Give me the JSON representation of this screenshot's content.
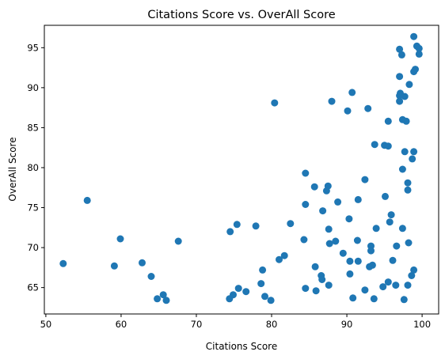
{
  "chart_data": {
    "type": "scatter",
    "title": "Citations Score vs. OverAll Score",
    "xlabel": "Citations Score",
    "ylabel": "OverAll Score",
    "xlim": [
      49.8,
      102.2
    ],
    "ylim": [
      61.7,
      97.8
    ],
    "xticks": [
      50,
      60,
      70,
      80,
      90,
      100
    ],
    "yticks": [
      65,
      70,
      75,
      80,
      85,
      90,
      95
    ],
    "grid": false,
    "legend": "none",
    "color": "#1f77b4",
    "points": [
      [
        52.3,
        68.0
      ],
      [
        55.5,
        75.9
      ],
      [
        59.1,
        67.7
      ],
      [
        59.9,
        71.1
      ],
      [
        62.8,
        68.1
      ],
      [
        64.0,
        66.4
      ],
      [
        64.8,
        63.6
      ],
      [
        65.6,
        64.1
      ],
      [
        66.0,
        63.4
      ],
      [
        67.6,
        70.8
      ],
      [
        74.4,
        63.6
      ],
      [
        74.5,
        72.0
      ],
      [
        74.9,
        64.1
      ],
      [
        75.4,
        72.9
      ],
      [
        75.6,
        64.9
      ],
      [
        76.6,
        64.5
      ],
      [
        77.9,
        72.7
      ],
      [
        78.6,
        65.5
      ],
      [
        78.8,
        67.2
      ],
      [
        79.1,
        63.9
      ],
      [
        79.9,
        63.4
      ],
      [
        80.4,
        88.1
      ],
      [
        81.0,
        68.5
      ],
      [
        81.7,
        69.0
      ],
      [
        82.5,
        73.0
      ],
      [
        84.3,
        71.0
      ],
      [
        84.5,
        75.4
      ],
      [
        84.5,
        79.3
      ],
      [
        84.5,
        64.9
      ],
      [
        85.7,
        77.6
      ],
      [
        85.8,
        67.6
      ],
      [
        85.9,
        64.6
      ],
      [
        86.6,
        66.5
      ],
      [
        86.7,
        66.0
      ],
      [
        86.8,
        74.6
      ],
      [
        87.3,
        77.1
      ],
      [
        87.5,
        77.7
      ],
      [
        87.6,
        65.3
      ],
      [
        87.6,
        72.3
      ],
      [
        87.7,
        70.5
      ],
      [
        88.0,
        88.3
      ],
      [
        88.5,
        70.8
      ],
      [
        88.8,
        75.7
      ],
      [
        89.5,
        69.3
      ],
      [
        90.1,
        87.1
      ],
      [
        90.3,
        73.6
      ],
      [
        90.4,
        68.3
      ],
      [
        90.4,
        66.7
      ],
      [
        90.7,
        89.4
      ],
      [
        90.8,
        63.7
      ],
      [
        91.4,
        70.9
      ],
      [
        91.5,
        68.3
      ],
      [
        91.5,
        76.0
      ],
      [
        92.4,
        78.5
      ],
      [
        92.4,
        64.7
      ],
      [
        92.8,
        87.4
      ],
      [
        93.0,
        67.6
      ],
      [
        93.2,
        70.2
      ],
      [
        93.2,
        69.6
      ],
      [
        93.4,
        67.8
      ],
      [
        93.6,
        63.6
      ],
      [
        93.7,
        82.9
      ],
      [
        93.9,
        72.4
      ],
      [
        94.8,
        65.1
      ],
      [
        95.0,
        82.8
      ],
      [
        95.1,
        76.4
      ],
      [
        95.5,
        82.7
      ],
      [
        95.5,
        85.8
      ],
      [
        95.5,
        65.7
      ],
      [
        95.7,
        73.2
      ],
      [
        95.9,
        74.1
      ],
      [
        96.1,
        68.4
      ],
      [
        96.5,
        65.3
      ],
      [
        96.6,
        70.2
      ],
      [
        97.0,
        94.8
      ],
      [
        97.0,
        91.4
      ],
      [
        97.0,
        88.3
      ],
      [
        97.0,
        89.0
      ],
      [
        97.1,
        89.3
      ],
      [
        97.3,
        94.1
      ],
      [
        97.4,
        86.0
      ],
      [
        97.4,
        79.8
      ],
      [
        97.4,
        72.4
      ],
      [
        97.6,
        63.5
      ],
      [
        97.7,
        82.0
      ],
      [
        97.7,
        88.9
      ],
      [
        97.9,
        85.8
      ],
      [
        98.1,
        65.3
      ],
      [
        98.1,
        78.1
      ],
      [
        98.1,
        77.2
      ],
      [
        98.2,
        70.6
      ],
      [
        98.3,
        90.4
      ],
      [
        98.6,
        66.5
      ],
      [
        98.7,
        81.1
      ],
      [
        98.9,
        67.2
      ],
      [
        98.9,
        82.0
      ],
      [
        98.9,
        96.4
      ],
      [
        98.9,
        92.0
      ],
      [
        99.1,
        92.3
      ],
      [
        99.3,
        95.2
      ],
      [
        99.6,
        94.2
      ],
      [
        99.6,
        94.9
      ]
    ]
  }
}
